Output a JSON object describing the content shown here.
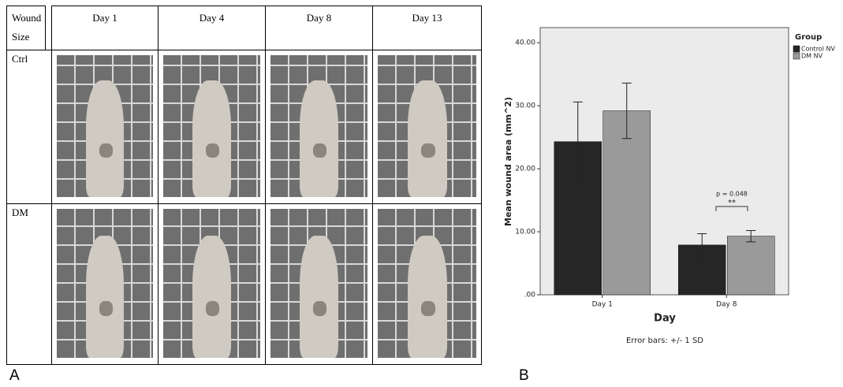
{
  "panel_labels": [
    "A",
    "B"
  ],
  "table": {
    "header": [
      "Wound Size",
      "Day 1",
      "Day 4",
      "Day 8",
      "Day 13"
    ],
    "rows": [
      [
        "Ctrl"
      ],
      [
        "DM"
      ]
    ]
  },
  "chart_data": {
    "type": "bar",
    "x_label": "Day",
    "y_label": "Mean wound area (mm^2)",
    "categories": [
      "Day 1",
      "Day 8"
    ],
    "series": [
      {
        "name": "Control NV",
        "color": "#262626",
        "values": [
          24.3,
          7.9
        ],
        "errors": [
          6.3,
          1.8
        ]
      },
      {
        "name": "DM NV",
        "color": "#9a9a9a",
        "values": [
          29.2,
          9.3
        ],
        "errors": [
          4.4,
          0.9
        ]
      }
    ],
    "ylim": [
      0,
      42.4
    ],
    "yticks": [
      {
        "value": 0,
        "label": ".00"
      },
      {
        "value": 10,
        "label": "10.00"
      },
      {
        "value": 20,
        "label": "20.00"
      },
      {
        "value": 30,
        "label": "30.00"
      },
      {
        "value": 40,
        "label": "40.00"
      }
    ],
    "legend_title": "Group",
    "legend_position": "right",
    "note": "Error bars: +/- 1 SD",
    "annotations": [
      "p = 0.048",
      "**"
    ]
  }
}
